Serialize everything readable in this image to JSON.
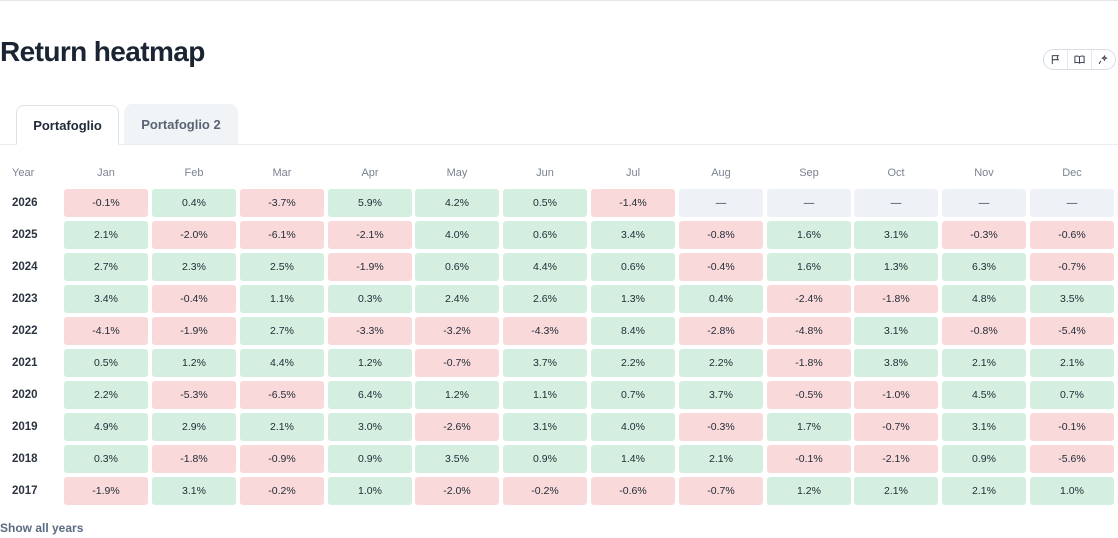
{
  "title": "Return heatmap",
  "toolbar": {
    "icons": [
      "flag-icon",
      "book-icon",
      "sparkle-icon"
    ]
  },
  "tabs": [
    {
      "label": "Portafoglio",
      "active": true
    },
    {
      "label": "Portafoglio 2",
      "active": false
    }
  ],
  "heatmap": {
    "year_header": "Year",
    "months": [
      "Jan",
      "Feb",
      "Mar",
      "Apr",
      "May",
      "Jun",
      "Jul",
      "Aug",
      "Sep",
      "Oct",
      "Nov",
      "Dec"
    ],
    "rows": [
      {
        "year": "2026",
        "values": [
          "-0.1%",
          "0.4%",
          "-3.7%",
          "5.9%",
          "4.2%",
          "0.5%",
          "-1.4%",
          "—",
          "—",
          "—",
          "—",
          "—"
        ]
      },
      {
        "year": "2025",
        "values": [
          "2.1%",
          "-2.0%",
          "-6.1%",
          "-2.1%",
          "4.0%",
          "0.6%",
          "3.4%",
          "-0.8%",
          "1.6%",
          "3.1%",
          "-0.3%",
          "-0.6%"
        ]
      },
      {
        "year": "2024",
        "values": [
          "2.7%",
          "2.3%",
          "2.5%",
          "-1.9%",
          "0.6%",
          "4.4%",
          "0.6%",
          "-0.4%",
          "1.6%",
          "1.3%",
          "6.3%",
          "-0.7%"
        ]
      },
      {
        "year": "2023",
        "values": [
          "3.4%",
          "-0.4%",
          "1.1%",
          "0.3%",
          "2.4%",
          "2.6%",
          "1.3%",
          "0.4%",
          "-2.4%",
          "-1.8%",
          "4.8%",
          "3.5%"
        ]
      },
      {
        "year": "2022",
        "values": [
          "-4.1%",
          "-1.9%",
          "2.7%",
          "-3.3%",
          "-3.2%",
          "-4.3%",
          "8.4%",
          "-2.8%",
          "-4.8%",
          "3.1%",
          "-0.8%",
          "-5.4%"
        ]
      },
      {
        "year": "2021",
        "values": [
          "0.5%",
          "1.2%",
          "4.4%",
          "1.2%",
          "-0.7%",
          "3.7%",
          "2.2%",
          "2.2%",
          "-1.8%",
          "3.8%",
          "2.1%",
          "2.1%"
        ]
      },
      {
        "year": "2020",
        "values": [
          "2.2%",
          "-5.3%",
          "-6.5%",
          "6.4%",
          "1.2%",
          "1.1%",
          "0.7%",
          "3.7%",
          "-0.5%",
          "-1.0%",
          "4.5%",
          "0.7%"
        ]
      },
      {
        "year": "2019",
        "values": [
          "4.9%",
          "2.9%",
          "2.1%",
          "3.0%",
          "-2.6%",
          "3.1%",
          "4.0%",
          "-0.3%",
          "1.7%",
          "-0.7%",
          "3.1%",
          "-0.1%"
        ]
      },
      {
        "year": "2018",
        "values": [
          "0.3%",
          "-1.8%",
          "-0.9%",
          "0.9%",
          "3.5%",
          "0.9%",
          "1.4%",
          "2.1%",
          "-0.1%",
          "-2.1%",
          "0.9%",
          "-5.6%"
        ]
      },
      {
        "year": "2017",
        "values": [
          "-1.9%",
          "3.1%",
          "-0.2%",
          "1.0%",
          "-2.0%",
          "-0.2%",
          "-0.6%",
          "-0.7%",
          "1.2%",
          "2.1%",
          "2.1%",
          "1.0%"
        ]
      }
    ]
  },
  "colors": {
    "positive": "#d4efe0",
    "negative": "#f9d9da",
    "empty": "#eef1f6"
  },
  "show_all_label": "Show all years"
}
